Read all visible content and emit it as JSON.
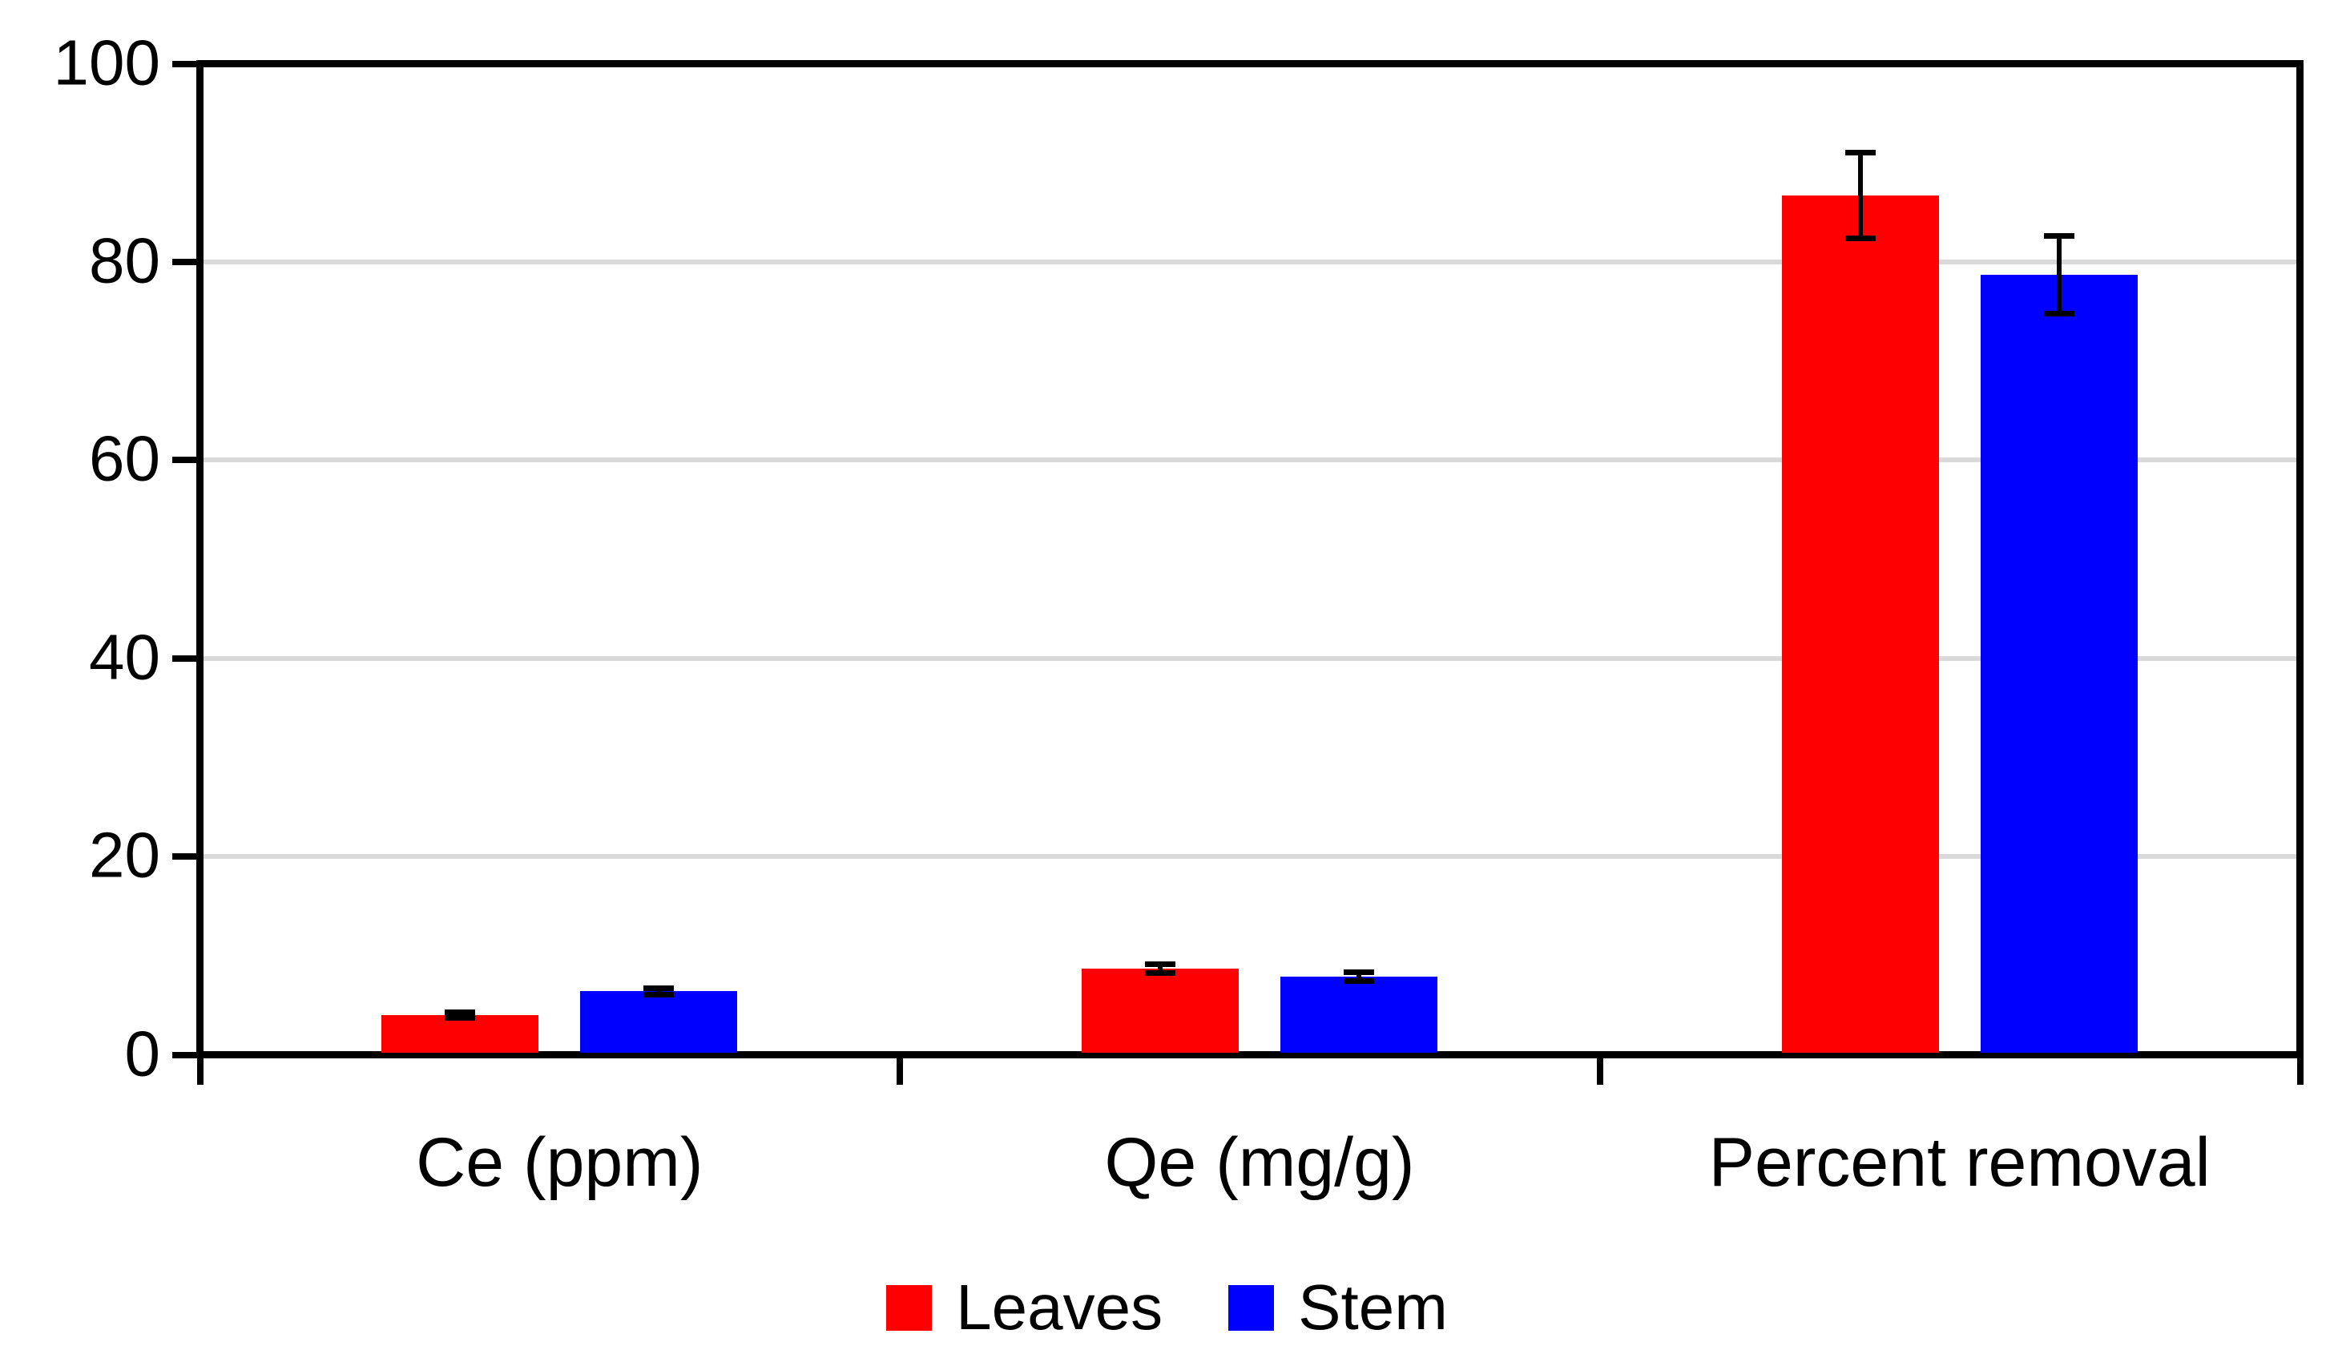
{
  "chart_data": {
    "type": "bar",
    "title": "",
    "xlabel": "",
    "ylabel": "",
    "categories": [
      "Ce (ppm)",
      "Qe (mg/g)",
      "Percent removal"
    ],
    "series": [
      {
        "name": "Leaves",
        "color": "#ff0000",
        "values": [
          4.0,
          8.7,
          86.7
        ],
        "errors": [
          0.3,
          0.45,
          4.3
        ]
      },
      {
        "name": "Stem",
        "color": "#0000ff",
        "values": [
          6.4,
          7.9,
          78.7
        ],
        "errors": [
          0.33,
          0.45,
          3.9
        ]
      }
    ],
    "ylim": [
      0,
      100
    ],
    "yticks": [
      0,
      20,
      40,
      60,
      80,
      100
    ],
    "grid": "horizontal",
    "gridline_color": "#d9d9d9",
    "axis_color": "#000000",
    "plot_border": true,
    "error_bars": true,
    "legend_position": "bottom"
  }
}
